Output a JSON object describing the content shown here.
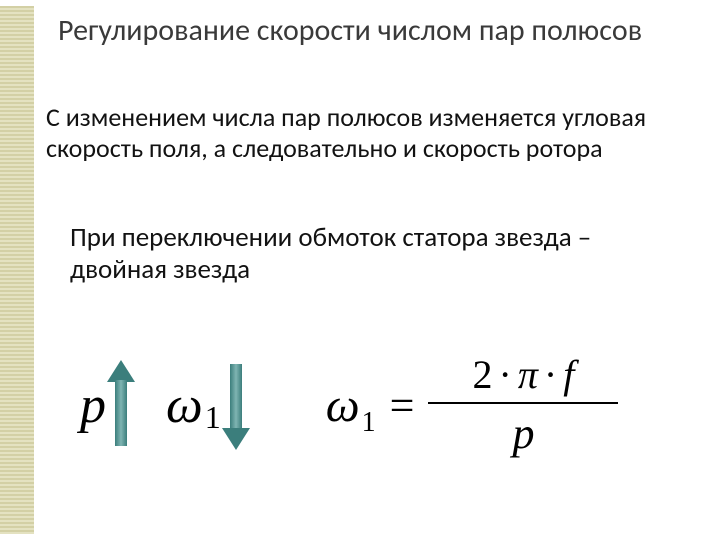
{
  "title": "Регулирование скорости числом пар полюсов",
  "para1": "С изменением числа пар полюсов изменяется угловая скорость поля, а следовательно и скорость ротора",
  "para2": "При переключении обмоток статора звезда – двойная звезда",
  "symbols": {
    "p": "p",
    "omega": "ω",
    "one": "1",
    "eq": "=",
    "two": "2",
    "pi": "π",
    "f": "f",
    "dot": "·"
  },
  "colors": {
    "band_dark": "#d3d0a5",
    "band_light": "#e4e2c1",
    "arrow": "#3b7e7c",
    "title_color": "#3a3a3a",
    "text_color": "#121212"
  },
  "arrows": {
    "p": "up",
    "omega": "down"
  },
  "formula": {
    "lhs": "ω₁",
    "numerator": "2·π·f",
    "denominator": "p"
  }
}
